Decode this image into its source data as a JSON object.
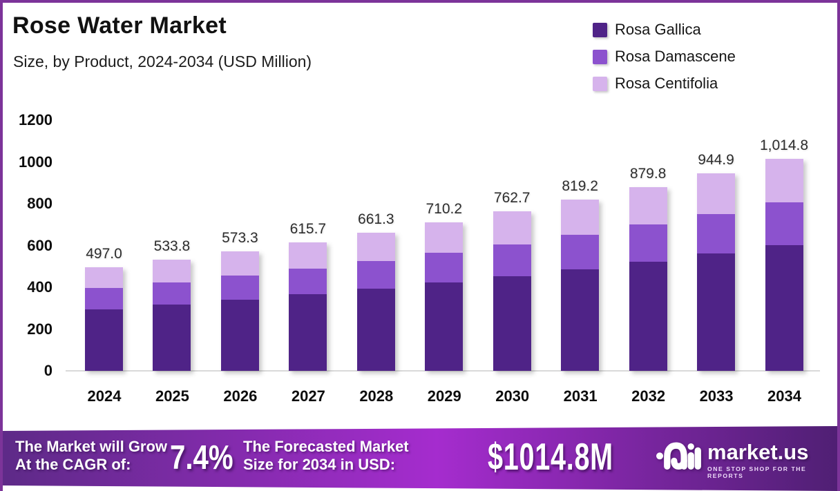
{
  "frame": {
    "border_color": "#7C3499",
    "background": "#ffffff"
  },
  "header": {
    "title": "Rose Water Market",
    "subtitle": "Size, by Product, 2024-2034 (USD Million)"
  },
  "legend": {
    "items": [
      {
        "label": "Rosa Gallica",
        "color": "#4F2387"
      },
      {
        "label": "Rosa Damascene",
        "color": "#8C52CE"
      },
      {
        "label": "Rosa Centifolia",
        "color": "#D6B3EC"
      }
    ]
  },
  "chart_data": {
    "type": "bar",
    "variant": "stacked",
    "title": "Rose Water Market",
    "subtitle": "Size, by Product, 2024-2034 (USD Million)",
    "unit": "USD Million",
    "categories": [
      "2024",
      "2025",
      "2026",
      "2027",
      "2028",
      "2029",
      "2030",
      "2031",
      "2032",
      "2033",
      "2034"
    ],
    "totals": [
      497.0,
      533.8,
      573.3,
      615.7,
      661.3,
      710.2,
      762.7,
      819.2,
      879.8,
      944.9,
      1014.8
    ],
    "total_labels": [
      "497.0",
      "533.8",
      "573.3",
      "615.7",
      "661.3",
      "710.2",
      "762.7",
      "819.2",
      "879.8",
      "944.9",
      "1,014.8"
    ],
    "series": [
      {
        "name": "Rosa Gallica",
        "color": "#4F2387",
        "values_estimated": true,
        "values": [
          295.2,
          317.1,
          340.5,
          365.7,
          392.8,
          421.9,
          453.0,
          486.6,
          522.6,
          561.3,
          602.8
        ]
      },
      {
        "name": "Rosa Damascene",
        "color": "#8C52CE",
        "values_estimated": true,
        "values": [
          99.9,
          107.3,
          115.2,
          123.8,
          132.9,
          142.8,
          153.3,
          164.7,
          176.8,
          189.9,
          204.0
        ]
      },
      {
        "name": "Rosa Centifolia",
        "color": "#D6B3EC",
        "values_estimated": true,
        "values": [
          101.9,
          109.4,
          117.6,
          126.2,
          135.6,
          145.5,
          156.4,
          167.9,
          180.4,
          193.7,
          208.0
        ]
      }
    ],
    "y_ticks": [
      0,
      200,
      400,
      600,
      800,
      1000,
      1200
    ],
    "ylim": [
      0,
      1200
    ],
    "grid": false,
    "legend_position": "top-right"
  },
  "footer": {
    "cagr_label_line1": "The Market will Grow",
    "cagr_label_line2": "At the CAGR of:",
    "cagr_value": "7.4%",
    "forecast_label_line1": "The Forecasted Market",
    "forecast_label_line2": "Size for 2034 in USD:",
    "forecast_value": "$1014.8M",
    "brand_name": "market.us",
    "brand_tagline": "ONE STOP SHOP FOR THE REPORTS",
    "gradient": [
      "#5D2A87",
      "#A52CCE",
      "#4F1F73"
    ]
  }
}
